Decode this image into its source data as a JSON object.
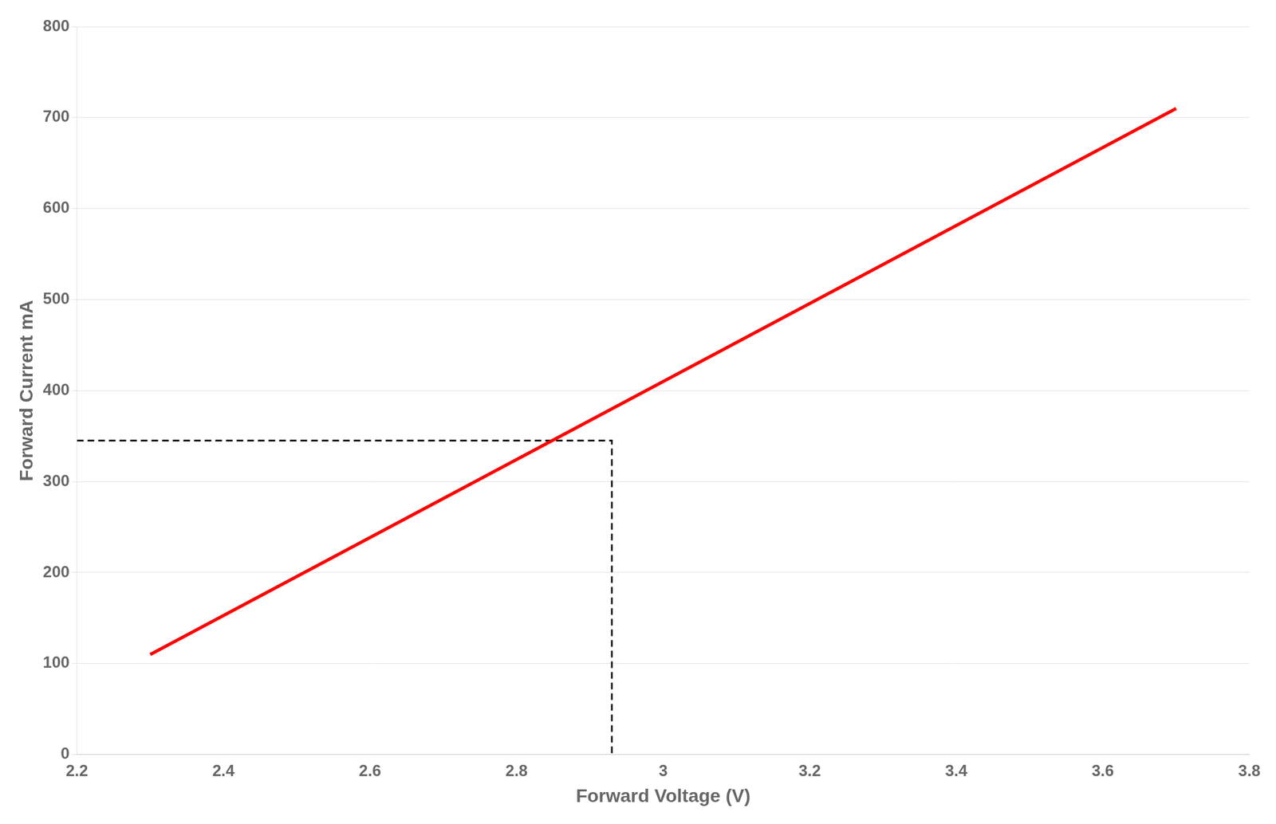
{
  "chart_data": {
    "type": "line",
    "x_label": "Forward Voltage (V)",
    "y_label": "Forward Current mA",
    "series": [
      {
        "x": [
          2.3,
          3.7
        ],
        "values": [
          110,
          710
        ],
        "color": "#FF0000",
        "line_style": "solid"
      },
      {
        "x": [
          2.2,
          2.93,
          2.93
        ],
        "values": [
          345,
          345,
          0
        ],
        "color": "#000000",
        "line_style": "dashed"
      }
    ],
    "xlim": [
      2.2,
      3.8
    ],
    "xticks": [
      2.2,
      2.4,
      2.6,
      2.8,
      3,
      3.2,
      3.4,
      3.6,
      3.8
    ],
    "ylim": [
      0,
      800
    ],
    "yticks": [
      0,
      100,
      200,
      300,
      400,
      500,
      600,
      700,
      800
    ],
    "grid": "y"
  }
}
